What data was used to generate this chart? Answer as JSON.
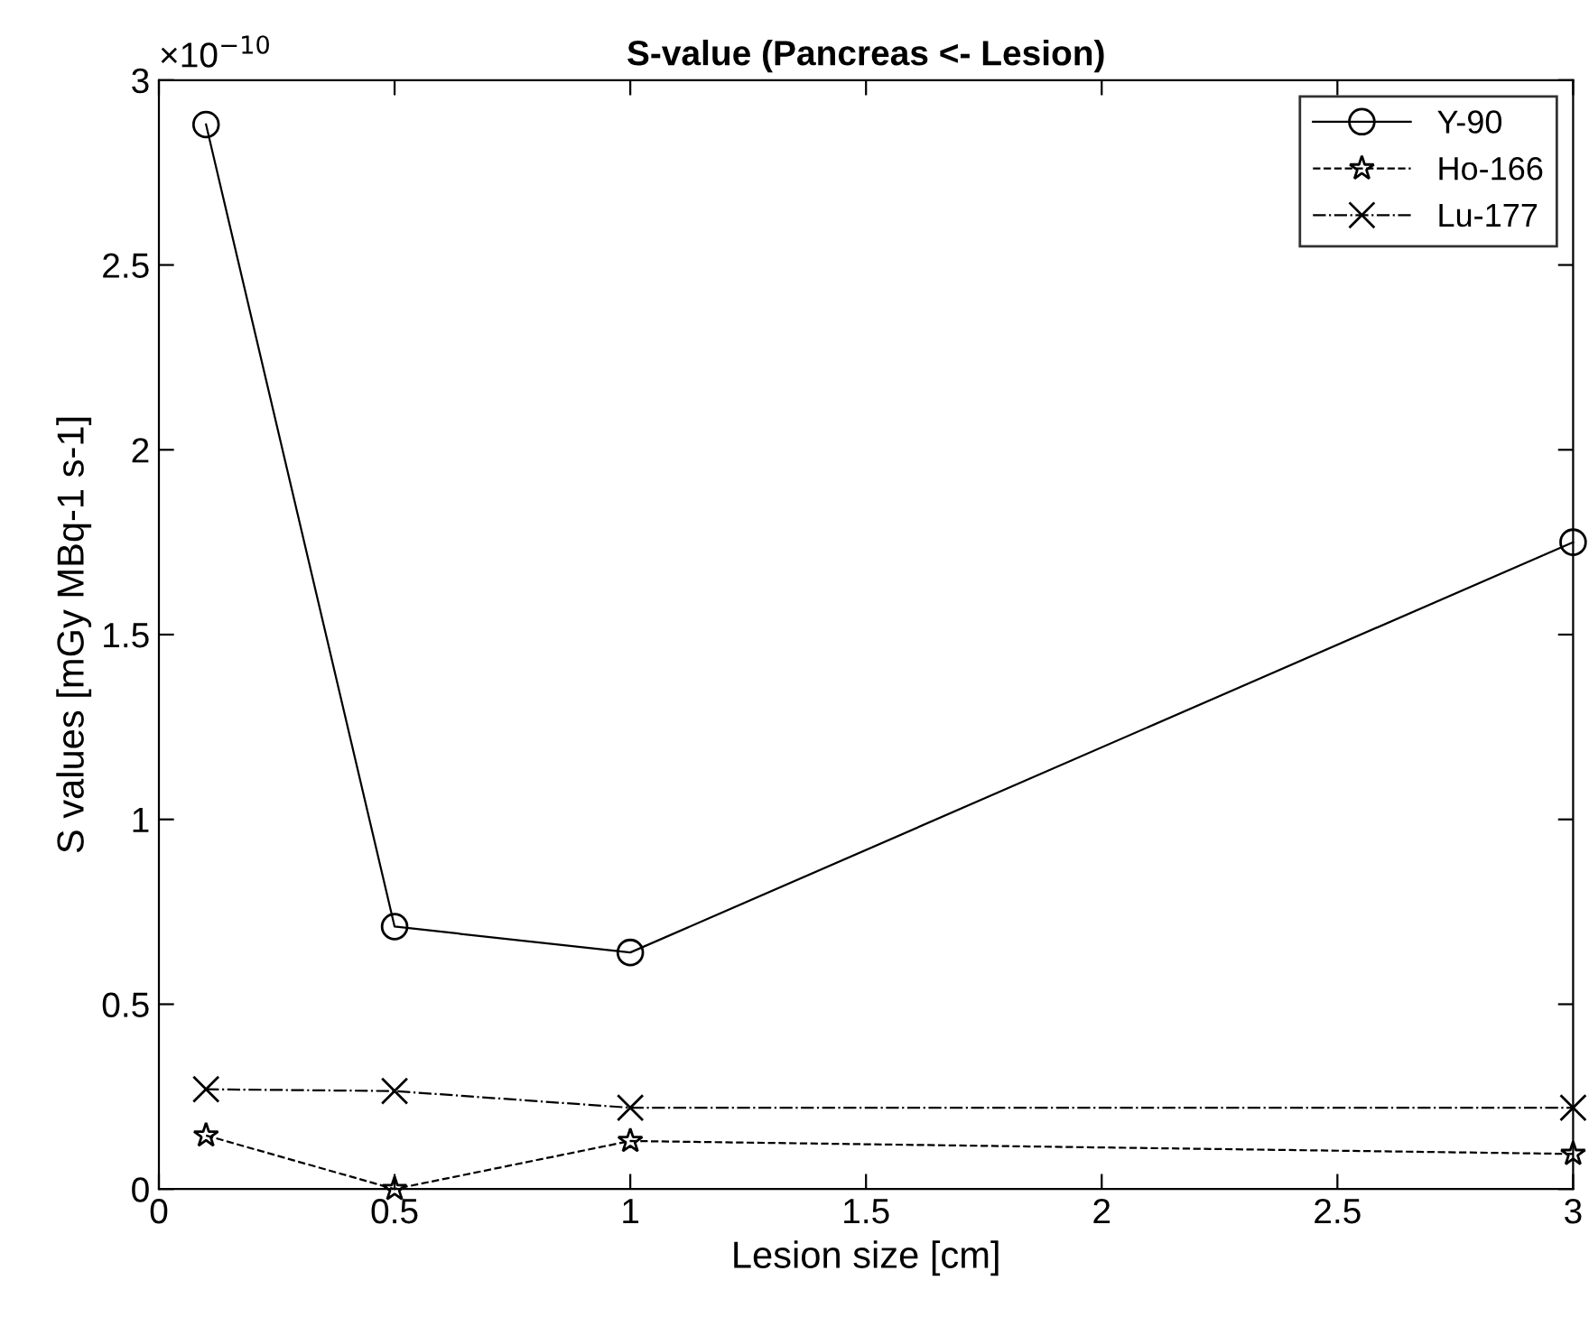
{
  "chart_data": {
    "type": "line",
    "title": "S-value (Pancreas <- Lesion)",
    "xlabel": "Lesion size [cm]",
    "ylabel": "S values [mGy MBq-1 s-1]",
    "annotations": [
      "×10$^{−10}$"
    ],
    "x": [
      0.1,
      0.5,
      1,
      3
    ],
    "series": [
      {
        "name": "Y-90",
        "color": "#000000",
        "values": [
          2.88,
          0.71,
          0.64,
          1.75
        ],
        "marker": "circle",
        "line_style": "solid"
      },
      {
        "name": "Ho-166",
        "color": "#000000",
        "values": [
          0.145,
          0.0,
          0.13,
          0.095
        ],
        "marker": "star",
        "line_style": "dashed"
      },
      {
        "name": "Lu-177",
        "color": "#000000",
        "values": [
          0.27,
          0.265,
          0.22,
          0.22
        ],
        "marker": "cross",
        "line_style": "dashdot"
      }
    ],
    "xlim": [
      0,
      3
    ],
    "ylim": [
      0,
      3
    ],
    "xticks": [
      0,
      0.5,
      1,
      1.5,
      2,
      2.5,
      3
    ],
    "yticks": [
      0,
      0.5,
      1,
      1.5,
      2,
      2.5,
      3
    ],
    "grid": false,
    "legend": "top right"
  }
}
